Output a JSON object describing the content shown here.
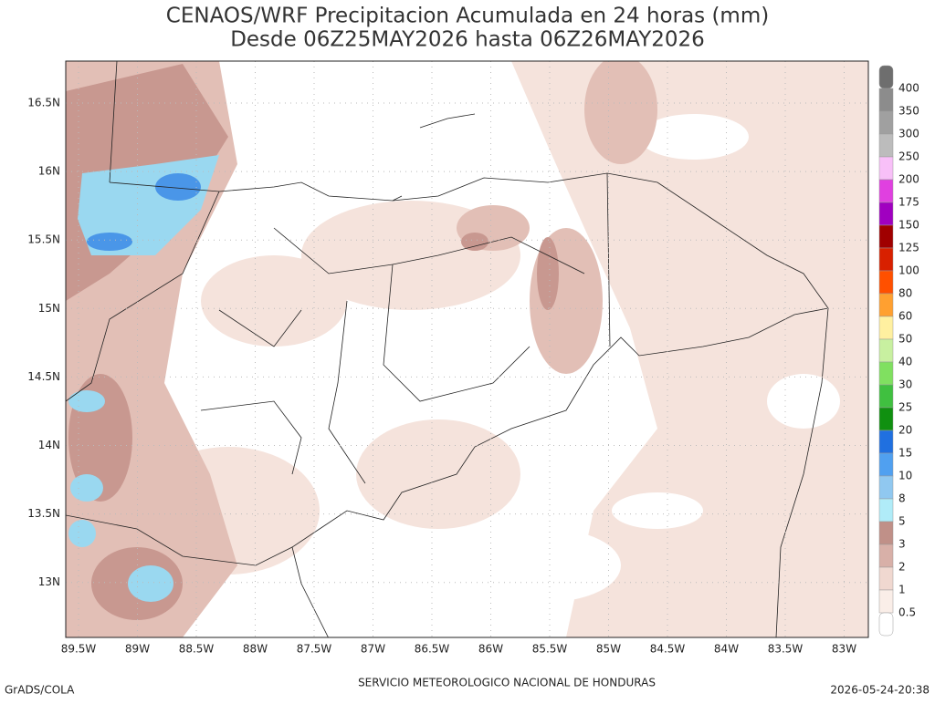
{
  "header": {
    "title": "CENAOS/WRF Precipitacion Acumulada en 24 horas (mm)",
    "subtitle": "Desde 06Z25MAY2026 hasta 06Z26MAY2026"
  },
  "map": {
    "lon_labels": [
      "89.5W",
      "89W",
      "88.5W",
      "88W",
      "87.5W",
      "87W",
      "86.5W",
      "86W",
      "85.5W",
      "85W",
      "84.5W",
      "84W",
      "83.5W",
      "83W"
    ],
    "lat_labels": [
      "16.5N",
      "16N",
      "15.5N",
      "15N",
      "14.5N",
      "14N",
      "13.5N",
      "13N"
    ]
  },
  "colorbar": {
    "labels": [
      "400",
      "350",
      "300",
      "250",
      "200",
      "175",
      "150",
      "125",
      "100",
      "80",
      "60",
      "50",
      "40",
      "30",
      "25",
      "20",
      "15",
      "10",
      "8",
      "5",
      "3",
      "2",
      "1",
      "0.5"
    ],
    "colors": [
      "#6e6e6e",
      "#8c8c8c",
      "#a0a0a0",
      "#bcbcbc",
      "#f8c0f8",
      "#e040e0",
      "#a000c0",
      "#a00000",
      "#d82000",
      "#ff5000",
      "#ffa030",
      "#fff0a0",
      "#c8f0a0",
      "#80e060",
      "#40c040",
      "#109010",
      "#2070e0",
      "#50a0f0",
      "#90c8f0",
      "#b0ecf8",
      "#c09088",
      "#d8b0a8",
      "#f0d8d0",
      "#faeee8",
      "#ffffff"
    ]
  },
  "footer": {
    "left": "GrADS/COLA",
    "center": "SERVICIO METEOROLOGICO NACIONAL DE HONDURAS",
    "right": "2026-05-24-20:38"
  }
}
